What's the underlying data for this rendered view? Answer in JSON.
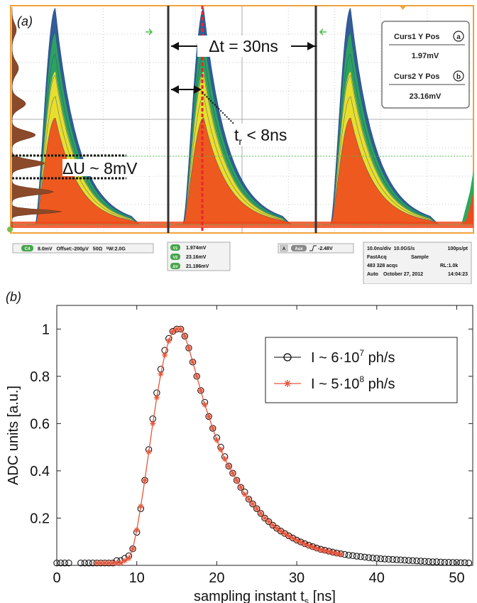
{
  "panel_a": {
    "label": "(a)",
    "annotations": {
      "delta_t": "Δt = 30ns",
      "rise_prefix": "t",
      "rise_sub": "r",
      "rise_suffix": " < 8ns",
      "delta_u": "ΔU ~ 8mV"
    },
    "cursor_box": {
      "curs1_title": "Curs1 Y Pos",
      "curs1_marker": "a",
      "curs1_value": "1.97mV",
      "curs2_title": "Curs2 Y Pos",
      "curs2_marker": "b",
      "curs2_value": "23.16mV"
    },
    "status": {
      "channel": "C4",
      "channel_settings": "8.0mV   Offset:-200μV   50Ω   ᵇW:2.0G",
      "v1_label": "V1",
      "v1_value": "1.974mV",
      "v2_label": "V2",
      "v2_value": "23.16mV",
      "dv_label": "ΔV",
      "dv_value": "21.186mV",
      "trigger_a": "A",
      "trigger_src": "Aux",
      "trigger_value": "-2.48V",
      "timebase": "10.0ns/div  10.0GS/s",
      "resolution": "100ps/pt",
      "mode": "FastAcq",
      "sample": "Sample",
      "acqs": "483 328 acqs",
      "record_length": "RL:1.0k",
      "auto": "Auto",
      "date": "October 27, 2012",
      "time": "14:04:23"
    },
    "colors": {
      "frame": "#f2a23a",
      "grid": "#aaaaaa",
      "trace_outer": "#1e4a8c",
      "trace_mid": "#2ea85a",
      "trace_yellow": "#f2e12a",
      "trace_inner": "#ee4a1e",
      "histogram": "#8b4a2a",
      "cursor_red": "#e8262a",
      "guide_green": "#4fbf4f"
    }
  },
  "panel_b": {
    "label": "(b)",
    "chart_data": {
      "type": "line",
      "xlabel": "sampling instant t",
      "xlabel_sub": "s",
      "xlabel_unit": " [ns]",
      "ylabel": "ADC units [a.u.]",
      "xlim": [
        0,
        52
      ],
      "ylim": [
        0,
        1.1
      ],
      "xticks": [
        0,
        10,
        20,
        30,
        40,
        50
      ],
      "yticks": [
        0.2,
        0.4,
        0.6,
        0.8,
        1
      ],
      "legend_position": "top-right",
      "grid": false,
      "series": [
        {
          "name": "I ~ 6·10⁷ ph/s",
          "name_base": "I ~ 6·10",
          "name_exp": "7",
          "name_tail": " ph/s",
          "marker": "circle",
          "color": "#000000",
          "x": [
            0,
            0.5,
            1,
            1.5,
            3,
            3.5,
            4,
            4.5,
            5,
            5.5,
            6,
            6.5,
            7,
            7.5,
            8,
            8.5,
            9,
            9.5,
            10,
            10.5,
            11,
            11.5,
            12,
            12.5,
            13,
            13.5,
            14,
            14.5,
            15,
            15.5,
            16,
            16.5,
            17,
            17.5,
            18,
            18.5,
            19,
            19.5,
            20,
            20.5,
            21,
            21.5,
            22,
            22.5,
            23,
            23.5,
            24,
            24.5,
            25,
            25.5,
            26,
            26.5,
            27,
            27.5,
            28,
            28.5,
            29,
            29.5,
            30,
            30.5,
            31,
            31.5,
            32,
            32.5,
            33,
            33.5,
            34,
            34.5,
            35,
            35.5,
            36,
            36.5,
            37,
            37.5,
            38,
            38.5,
            39,
            39.5,
            40,
            40.5,
            41,
            41.5,
            42,
            42.5,
            43,
            43.5,
            44,
            44.5,
            45,
            45.5,
            46,
            46.5,
            47,
            47.5,
            48,
            48.5,
            49,
            49.5,
            50,
            50.5,
            51,
            51.5
          ],
          "y": [
            0.01,
            0.01,
            0.01,
            0.01,
            0.01,
            0.01,
            0.01,
            0.01,
            0.01,
            0.01,
            0.01,
            0.01,
            0.01,
            0.02,
            0.02,
            0.03,
            0.04,
            0.07,
            0.14,
            0.24,
            0.36,
            0.49,
            0.62,
            0.73,
            0.83,
            0.91,
            0.96,
            0.99,
            1.0,
            1.0,
            0.97,
            0.92,
            0.86,
            0.8,
            0.74,
            0.69,
            0.63,
            0.58,
            0.54,
            0.5,
            0.46,
            0.42,
            0.39,
            0.36,
            0.33,
            0.31,
            0.28,
            0.26,
            0.24,
            0.22,
            0.2,
            0.185,
            0.17,
            0.157,
            0.145,
            0.135,
            0.125,
            0.116,
            0.107,
            0.099,
            0.092,
            0.085,
            0.079,
            0.073,
            0.068,
            0.064,
            0.06,
            0.056,
            0.052,
            0.049,
            0.046,
            0.043,
            0.041,
            0.039,
            0.037,
            0.035,
            0.033,
            0.031,
            0.03,
            0.028,
            0.027,
            0.026,
            0.025,
            0.024,
            0.023,
            0.022,
            0.021,
            0.02,
            0.019,
            0.018,
            0.017,
            0.016,
            0.015,
            0.015,
            0.014,
            0.013,
            0.013,
            0.012,
            0.012,
            0.011,
            0.011,
            0.01
          ]
        },
        {
          "name": "I ~ 5·10⁸ ph/s",
          "name_base": "I ~ 5·10",
          "name_exp": "8",
          "name_tail": " ph/s",
          "marker": "asterisk",
          "color": "#e8553a",
          "x": [
            5,
            5.5,
            6,
            6.5,
            7,
            7.5,
            8,
            8.5,
            9,
            9.5,
            10,
            10.5,
            11,
            11.5,
            12,
            12.5,
            13,
            13.5,
            14,
            14.5,
            15,
            15.5,
            16,
            16.5,
            17,
            17.5,
            18,
            18.5,
            19,
            19.5,
            20,
            20.5,
            21,
            21.5,
            22,
            22.5,
            23,
            23.5,
            24,
            24.5,
            25,
            25.5,
            26,
            26.5,
            27,
            27.5,
            28,
            28.5,
            29,
            29.5,
            30,
            30.5,
            31,
            31.5,
            32,
            32.5,
            33,
            33.5,
            34,
            34.5,
            35,
            35.5
          ],
          "y": [
            0.01,
            0.01,
            0.01,
            0.01,
            0.01,
            0.01,
            0.01,
            0.02,
            0.03,
            0.07,
            0.15,
            0.25,
            0.36,
            0.48,
            0.6,
            0.71,
            0.81,
            0.89,
            0.95,
            0.99,
            1.0,
            1.0,
            0.97,
            0.92,
            0.86,
            0.8,
            0.74,
            0.68,
            0.63,
            0.58,
            0.53,
            0.49,
            0.45,
            0.42,
            0.39,
            0.36,
            0.33,
            0.3,
            0.28,
            0.26,
            0.24,
            0.22,
            0.2,
            0.185,
            0.17,
            0.157,
            0.145,
            0.134,
            0.124,
            0.115,
            0.106,
            0.098,
            0.09,
            0.083,
            0.077,
            0.071,
            0.066,
            0.062,
            0.058,
            0.054,
            0.05,
            0.047
          ]
        }
      ]
    }
  }
}
